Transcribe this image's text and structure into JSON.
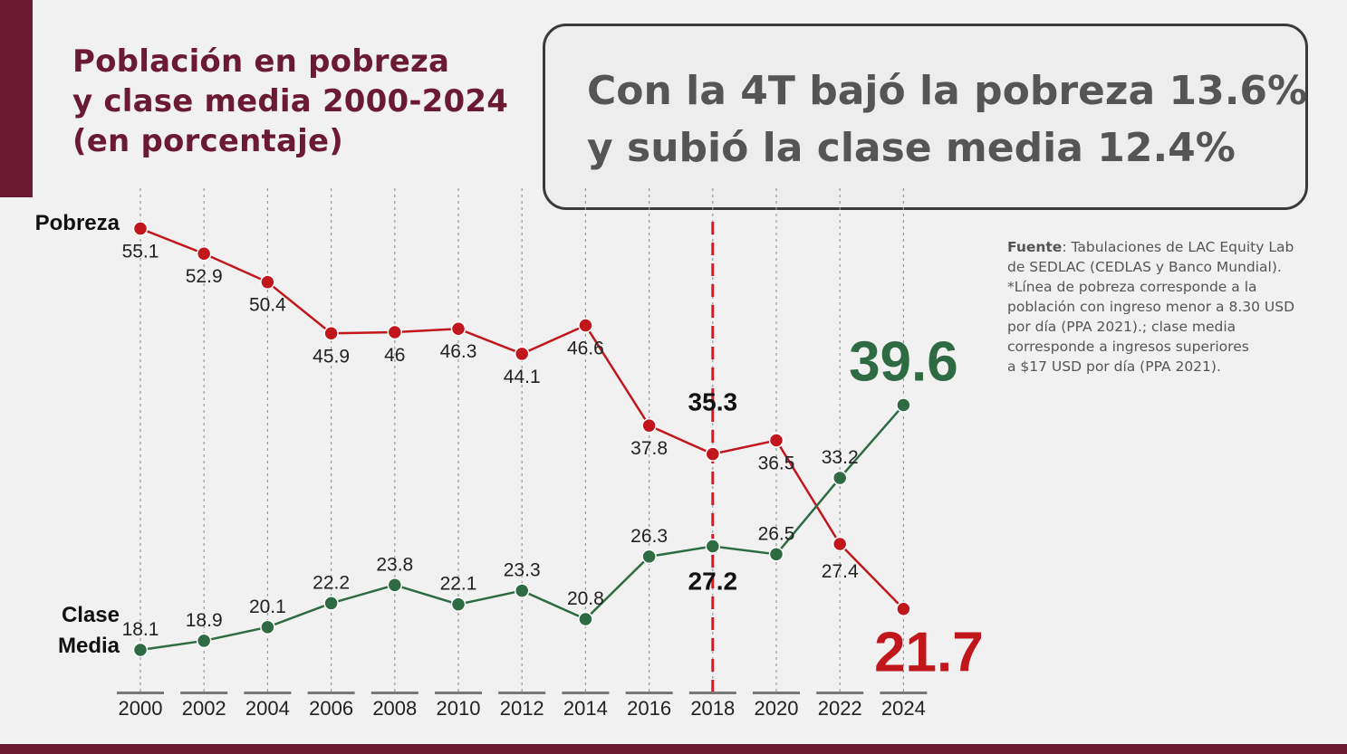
{
  "title_lines": [
    "Población en pobreza",
    "y clase media 2000-2024",
    "(en porcentaje)"
  ],
  "headline_lines": [
    "Con la 4T bajó la pobreza 13.6%",
    "y subió la clase media 12.4%"
  ],
  "source": {
    "bold": "Fuente",
    "first_line_rest": ": Tabulaciones de LAC Equity Lab",
    "lines": [
      "de SEDLAC (CEDLAS y Banco Mundial).",
      "*Línea de pobreza corresponde a la",
      "población con ingreso menor a 8.30 USD",
      "por día (PPA 2021).; clase media",
      "corresponde a ingresos superiores",
      "a $17 USD por día (PPA 2021)."
    ]
  },
  "colors": {
    "poverty": "#c1161c",
    "middle_class": "#2e6b42",
    "brand": "#6b1a33",
    "text": "#222222"
  },
  "chart_data": {
    "type": "line",
    "x": [
      "2000",
      "2002",
      "2004",
      "2006",
      "2008",
      "2010",
      "2012",
      "2014",
      "2016",
      "2018",
      "2020",
      "2022",
      "2024"
    ],
    "series": [
      {
        "name": "Pobreza",
        "values": [
          55.1,
          52.9,
          50.4,
          45.9,
          46,
          46.3,
          44.1,
          46.6,
          37.8,
          35.3,
          36.5,
          27.4,
          21.7
        ],
        "labels": [
          "55.1",
          "52.9",
          "50.4",
          "45.9",
          "46",
          "46.3",
          "44.1",
          "46.6",
          "37.8",
          "35.3",
          "36.5",
          "27.4",
          "21.7"
        ]
      },
      {
        "name": "Clase Media",
        "values": [
          18.1,
          18.9,
          20.1,
          22.2,
          23.8,
          22.1,
          23.3,
          20.8,
          26.3,
          27.2,
          26.5,
          33.2,
          39.6
        ],
        "labels": [
          "18.1",
          "18.9",
          "20.1",
          "22.2",
          "23.8",
          "22.1",
          "23.3",
          "20.8",
          "26.3",
          "27.2",
          "26.5",
          "33.2",
          "39.6"
        ]
      }
    ],
    "series_label_lines": [
      [
        "Pobreza"
      ],
      [
        "Clase",
        "Media"
      ]
    ],
    "highlight_year": "2018",
    "grid": "vertical-dotted"
  }
}
